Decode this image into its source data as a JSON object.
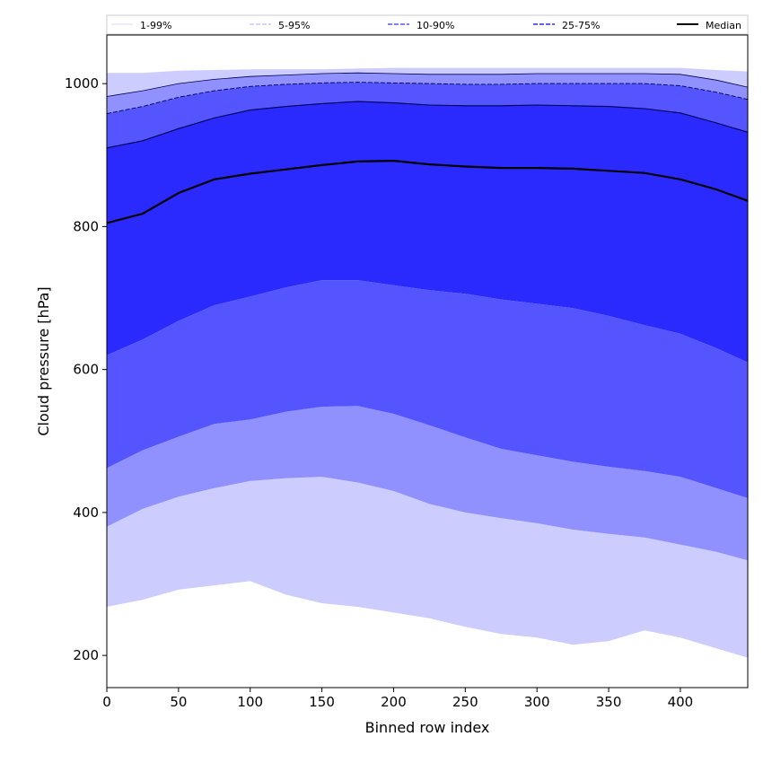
{
  "chart_data": {
    "type": "area",
    "title": "",
    "xlabel": "Binned row index",
    "ylabel": "Cloud pressure [hPa]",
    "xlim": [
      0,
      447
    ],
    "ylim": [
      155,
      1068
    ],
    "xticks": [
      0,
      50,
      100,
      150,
      200,
      250,
      300,
      350,
      400
    ],
    "yticks": [
      200,
      400,
      600,
      800,
      1000
    ],
    "grid": false,
    "legend_placement": "top (above plot, spanning width)",
    "colors": {
      "band_1_99": "#ccccff",
      "band_5_95": "#9090ff",
      "band_10_90": "#5555ff",
      "band_25_75": "#2a2aff",
      "median": "#000000",
      "edge": "#000050"
    },
    "x": [
      0,
      25,
      50,
      75,
      100,
      125,
      150,
      175,
      200,
      225,
      250,
      275,
      300,
      325,
      350,
      375,
      400,
      425,
      447
    ],
    "series": [
      {
        "name": "1-99%",
        "role": "upper_1",
        "values": [
          1015,
          1015,
          1018,
          1019,
          1020,
          1020,
          1020,
          1021,
          1022,
          1022,
          1022,
          1022,
          1022,
          1022,
          1022,
          1022,
          1022,
          1019,
          1017
        ]
      },
      {
        "name": "5-95%",
        "role": "upper_5",
        "values": [
          982,
          990,
          1000,
          1006,
          1010,
          1012,
          1014,
          1015,
          1014,
          1013,
          1013,
          1013,
          1014,
          1014,
          1014,
          1014,
          1013,
          1005,
          995
        ]
      },
      {
        "name": "10-90%",
        "role": "upper_10",
        "values": [
          958,
          968,
          981,
          990,
          996,
          999,
          1001,
          1002,
          1001,
          1000,
          999,
          999,
          1000,
          1000,
          1000,
          1000,
          997,
          988,
          978
        ]
      },
      {
        "name": "25-75%",
        "role": "upper_25",
        "values": [
          910,
          920,
          937,
          952,
          963,
          968,
          972,
          975,
          973,
          970,
          969,
          969,
          970,
          969,
          968,
          965,
          959,
          945,
          932
        ]
      },
      {
        "name": "Median",
        "role": "median",
        "values": [
          805,
          818,
          847,
          866,
          874,
          880,
          886,
          891,
          892,
          887,
          884,
          882,
          882,
          881,
          878,
          875,
          866,
          852,
          836
        ]
      },
      {
        "name": "25-75%",
        "role": "lower_25",
        "values": [
          620,
          642,
          668,
          690,
          702,
          715,
          725,
          725,
          718,
          711,
          706,
          698,
          692,
          686,
          675,
          662,
          650,
          630,
          610
        ]
      },
      {
        "name": "10-90%",
        "role": "lower_10",
        "values": [
          462,
          487,
          506,
          524,
          530,
          541,
          548,
          549,
          538,
          522,
          505,
          489,
          480,
          471,
          464,
          458,
          450,
          434,
          420
        ]
      },
      {
        "name": "5-95%",
        "role": "lower_5",
        "values": [
          380,
          405,
          422,
          434,
          444,
          448,
          450,
          442,
          430,
          412,
          400,
          392,
          385,
          376,
          370,
          365,
          355,
          345,
          333
        ]
      },
      {
        "name": "1-99%",
        "role": "lower_1",
        "values": [
          268,
          278,
          292,
          298,
          304,
          285,
          273,
          268,
          260,
          252,
          240,
          230,
          225,
          215,
          220,
          235,
          225,
          210,
          197
        ]
      }
    ],
    "legend": [
      {
        "label": "1-99%",
        "style": "thin-solid",
        "color": "#ccccff"
      },
      {
        "label": "5-95%",
        "style": "thin-dashed",
        "color": "#9090ff"
      },
      {
        "label": "10-90%",
        "style": "dashed",
        "color": "#5555ff"
      },
      {
        "label": "25-75%",
        "style": "dashed",
        "color": "#2a2aff"
      },
      {
        "label": "Median",
        "style": "solid-thick",
        "color": "#000000"
      }
    ]
  }
}
